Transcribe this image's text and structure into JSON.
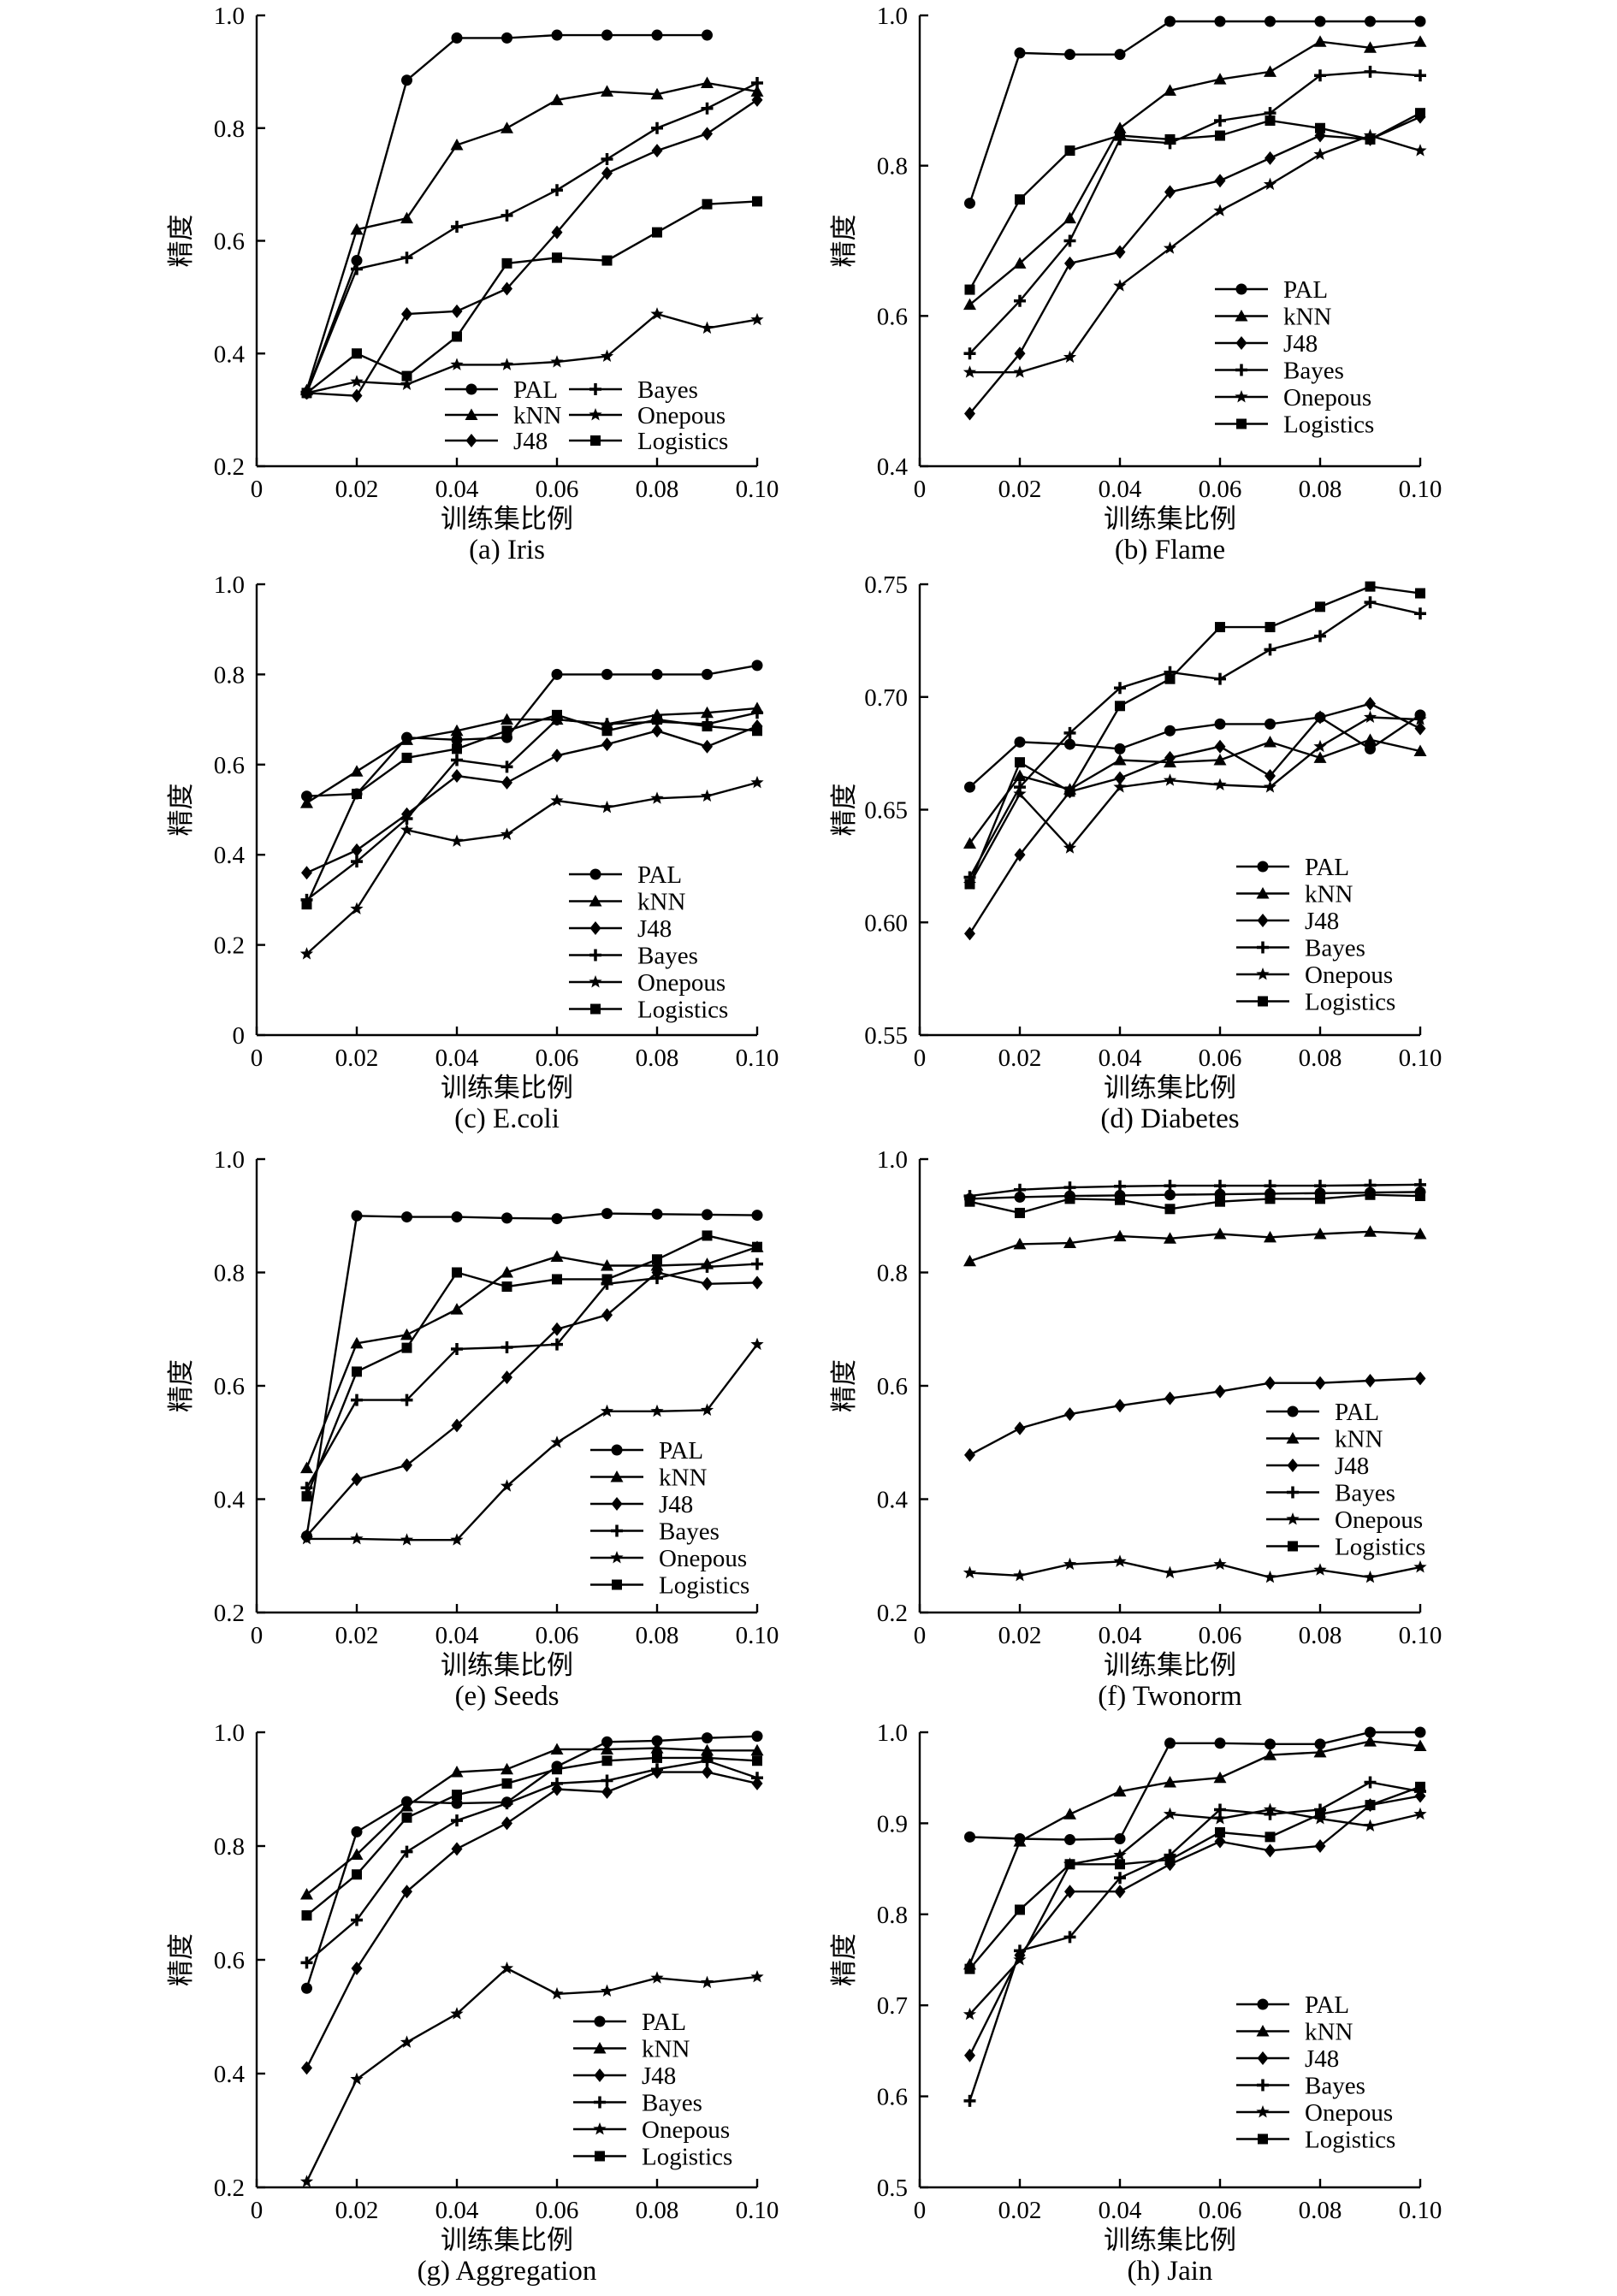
{
  "series_names": [
    "PAL",
    "kNN",
    "J48",
    "Bayes",
    "Onepous",
    "Logistics"
  ],
  "xlabel": "训练集比例",
  "ylabel": "精度",
  "x_ticks": [
    "0",
    "0.02",
    "0.04",
    "0.06",
    "0.08",
    "0.10"
  ],
  "chart_data": [
    {
      "type": "line",
      "title": "(a) Iris",
      "xlabel": "训练集比例",
      "ylabel": "精度",
      "xlim": [
        0,
        0.1
      ],
      "ylim": [
        0.2,
        1.0
      ],
      "y_ticks": [
        "0.2",
        "0.4",
        "0.6",
        "0.8",
        "1.0"
      ],
      "legend": "bottom-center",
      "x": [
        0.01,
        0.02,
        0.03,
        0.04,
        0.05,
        0.06,
        0.07,
        0.08,
        0.09,
        0.1
      ],
      "series": [
        {
          "name": "PAL",
          "values": [
            0.33,
            0.565,
            0.885,
            0.96,
            0.96,
            0.965,
            0.965,
            0.965,
            0.965,
            null
          ]
        },
        {
          "name": "kNN",
          "values": [
            0.335,
            0.62,
            0.64,
            0.77,
            0.8,
            0.85,
            0.865,
            0.86,
            0.88,
            0.865
          ]
        },
        {
          "name": "J48",
          "values": [
            0.33,
            0.325,
            0.47,
            0.475,
            0.515,
            0.615,
            0.72,
            0.76,
            0.79,
            0.85
          ]
        },
        {
          "name": "Bayes",
          "values": [
            0.33,
            0.55,
            0.57,
            0.625,
            0.645,
            0.69,
            0.745,
            0.8,
            0.835,
            0.88
          ]
        },
        {
          "name": "Onepous",
          "values": [
            0.33,
            0.35,
            0.345,
            0.38,
            0.38,
            0.385,
            0.395,
            0.47,
            0.445,
            0.46
          ]
        },
        {
          "name": "Logistics",
          "values": [
            0.33,
            0.4,
            0.36,
            0.43,
            0.56,
            0.57,
            0.565,
            0.615,
            0.665,
            0.67
          ]
        }
      ]
    },
    {
      "type": "line",
      "title": "(b) Flame",
      "xlabel": "训练集比例",
      "ylabel": "精度",
      "xlim": [
        0,
        0.1
      ],
      "ylim": [
        0.4,
        1.0
      ],
      "y_ticks": [
        "0.4",
        "0.6",
        "0.8",
        "1.0"
      ],
      "legend": "center-right",
      "x": [
        0.01,
        0.02,
        0.03,
        0.04,
        0.05,
        0.06,
        0.07,
        0.08,
        0.09,
        0.1
      ],
      "series": [
        {
          "name": "PAL",
          "values": [
            0.75,
            0.95,
            0.948,
            0.948,
            0.992,
            0.992,
            0.992,
            0.992,
            0.992,
            0.992
          ]
        },
        {
          "name": "kNN",
          "values": [
            0.615,
            0.67,
            0.73,
            0.85,
            0.9,
            0.915,
            0.925,
            0.965,
            0.957,
            0.965
          ]
        },
        {
          "name": "J48",
          "values": [
            0.47,
            0.55,
            0.67,
            0.685,
            0.765,
            0.78,
            0.81,
            0.84,
            0.835,
            0.865
          ]
        },
        {
          "name": "Bayes",
          "values": [
            0.55,
            0.62,
            0.7,
            0.835,
            0.83,
            0.86,
            0.87,
            0.92,
            0.925,
            0.92
          ]
        },
        {
          "name": "Onepous",
          "values": [
            0.525,
            0.525,
            0.545,
            0.64,
            0.69,
            0.74,
            0.775,
            0.815,
            0.84,
            0.82
          ]
        },
        {
          "name": "Logistics",
          "values": [
            0.635,
            0.755,
            0.82,
            0.84,
            0.835,
            0.84,
            0.86,
            0.85,
            0.835,
            0.87
          ]
        }
      ]
    },
    {
      "type": "line",
      "title": "(c) E.coli",
      "xlabel": "训练集比例",
      "ylabel": "精度",
      "xlim": [
        0,
        0.1
      ],
      "ylim": [
        0,
        1.0
      ],
      "y_ticks": [
        "0",
        "0.2",
        "0.4",
        "0.6",
        "0.8",
        "1.0"
      ],
      "legend": "bottom-right",
      "x": [
        0.01,
        0.02,
        0.03,
        0.04,
        0.05,
        0.06,
        0.07,
        0.08,
        0.09,
        0.1
      ],
      "series": [
        {
          "name": "PAL",
          "values": [
            0.53,
            0.535,
            0.66,
            0.655,
            0.66,
            0.8,
            0.8,
            0.8,
            0.8,
            0.82
          ]
        },
        {
          "name": "kNN",
          "values": [
            0.515,
            0.585,
            0.655,
            0.675,
            0.7,
            0.7,
            0.69,
            0.71,
            0.715,
            0.725
          ]
        },
        {
          "name": "J48",
          "values": [
            0.36,
            0.41,
            0.49,
            0.575,
            0.56,
            0.62,
            0.645,
            0.675,
            0.64,
            0.685
          ]
        },
        {
          "name": "Bayes",
          "values": [
            0.3,
            0.385,
            0.48,
            0.61,
            0.595,
            0.7,
            0.69,
            0.695,
            0.69,
            0.715
          ]
        },
        {
          "name": "Onepous",
          "values": [
            0.18,
            0.28,
            0.455,
            0.43,
            0.445,
            0.52,
            0.505,
            0.525,
            0.53,
            0.56
          ]
        },
        {
          "name": "Logistics",
          "values": [
            0.29,
            0.535,
            0.615,
            0.635,
            0.675,
            0.71,
            0.675,
            0.7,
            0.685,
            0.675
          ]
        }
      ]
    },
    {
      "type": "line",
      "title": "(d) Diabetes",
      "xlabel": "训练集比例",
      "ylabel": "精度",
      "xlim": [
        0,
        0.1
      ],
      "ylim": [
        0.55,
        0.75
      ],
      "y_ticks": [
        "0.55",
        "0.60",
        "0.65",
        "0.70",
        "0.75"
      ],
      "legend": "bottom-right",
      "x": [
        0.01,
        0.02,
        0.03,
        0.04,
        0.05,
        0.06,
        0.07,
        0.08,
        0.09,
        0.1
      ],
      "series": [
        {
          "name": "PAL",
          "values": [
            0.66,
            0.68,
            0.679,
            0.677,
            0.685,
            0.688,
            0.688,
            0.691,
            0.677,
            0.692
          ]
        },
        {
          "name": "kNN",
          "values": [
            0.635,
            0.665,
            0.659,
            0.672,
            0.671,
            0.672,
            0.68,
            0.673,
            0.681,
            0.676
          ]
        },
        {
          "name": "J48",
          "values": [
            0.595,
            0.63,
            0.658,
            0.664,
            0.673,
            0.678,
            0.665,
            0.691,
            0.697,
            0.686
          ]
        },
        {
          "name": "Bayes",
          "values": [
            0.62,
            0.66,
            0.684,
            0.704,
            0.711,
            0.708,
            0.721,
            0.727,
            0.742,
            0.737
          ]
        },
        {
          "name": "Onepous",
          "values": [
            0.617,
            0.657,
            0.633,
            0.66,
            0.663,
            0.661,
            0.66,
            0.678,
            0.691,
            0.69
          ]
        },
        {
          "name": "Logistics",
          "values": [
            0.617,
            0.671,
            0.658,
            0.696,
            0.708,
            0.731,
            0.731,
            0.74,
            0.749,
            0.746
          ]
        }
      ]
    },
    {
      "type": "line",
      "title": "(e) Seeds",
      "xlabel": "训练集比例",
      "ylabel": "精度",
      "xlim": [
        0,
        0.1
      ],
      "ylim": [
        0.2,
        1.0
      ],
      "y_ticks": [
        "0.2",
        "0.4",
        "0.6",
        "0.8",
        "1.0"
      ],
      "legend": "bottom-right",
      "x": [
        0.01,
        0.02,
        0.03,
        0.04,
        0.05,
        0.06,
        0.07,
        0.08,
        0.09,
        0.1
      ],
      "series": [
        {
          "name": "PAL",
          "values": [
            0.335,
            0.9,
            0.898,
            0.898,
            0.896,
            0.895,
            0.904,
            0.903,
            0.902,
            0.901
          ]
        },
        {
          "name": "kNN",
          "values": [
            0.455,
            0.675,
            0.69,
            0.735,
            0.8,
            0.828,
            0.812,
            0.812,
            0.815,
            0.845
          ]
        },
        {
          "name": "J48",
          "values": [
            0.335,
            0.435,
            0.46,
            0.53,
            0.615,
            0.7,
            0.725,
            0.8,
            0.78,
            0.782
          ]
        },
        {
          "name": "Bayes",
          "values": [
            0.42,
            0.575,
            0.575,
            0.665,
            0.668,
            0.673,
            0.78,
            0.79,
            0.81,
            0.815
          ]
        },
        {
          "name": "Onepous",
          "values": [
            0.33,
            0.33,
            0.328,
            0.328,
            0.423,
            0.5,
            0.555,
            0.555,
            0.557,
            0.673
          ]
        },
        {
          "name": "Logistics",
          "values": [
            0.405,
            0.625,
            0.667,
            0.8,
            0.775,
            0.788,
            0.788,
            0.823,
            0.865,
            0.845
          ]
        }
      ]
    },
    {
      "type": "line",
      "title": "(f) Twonorm",
      "xlabel": "训练集比例",
      "ylabel": "精度",
      "xlim": [
        0,
        0.1
      ],
      "ylim": [
        0.2,
        1.0
      ],
      "y_ticks": [
        "0.2",
        "0.4",
        "0.6",
        "0.8",
        "1.0"
      ],
      "legend": "center-right",
      "x": [
        0.01,
        0.02,
        0.03,
        0.04,
        0.05,
        0.06,
        0.07,
        0.08,
        0.09,
        0.1
      ],
      "series": [
        {
          "name": "PAL",
          "values": [
            0.93,
            0.933,
            0.935,
            0.936,
            0.937,
            0.938,
            0.939,
            0.94,
            0.941,
            0.942
          ]
        },
        {
          "name": "kNN",
          "values": [
            0.82,
            0.85,
            0.852,
            0.864,
            0.86,
            0.868,
            0.862,
            0.868,
            0.872,
            0.868
          ]
        },
        {
          "name": "J48",
          "values": [
            0.478,
            0.525,
            0.55,
            0.565,
            0.578,
            0.59,
            0.605,
            0.605,
            0.609,
            0.613
          ]
        },
        {
          "name": "Bayes",
          "values": [
            0.935,
            0.946,
            0.95,
            0.952,
            0.953,
            0.953,
            0.953,
            0.953,
            0.954,
            0.955
          ]
        },
        {
          "name": "Onepous",
          "values": [
            0.27,
            0.265,
            0.285,
            0.29,
            0.27,
            0.285,
            0.262,
            0.275,
            0.262,
            0.28
          ]
        },
        {
          "name": "Logistics",
          "values": [
            0.925,
            0.905,
            0.93,
            0.928,
            0.912,
            0.925,
            0.93,
            0.93,
            0.937,
            0.935
          ]
        }
      ]
    },
    {
      "type": "line",
      "title": "(g) Aggregation",
      "xlabel": "训练集比例",
      "ylabel": "精度",
      "xlim": [
        0,
        0.1
      ],
      "ylim": [
        0.2,
        1.0
      ],
      "y_ticks": [
        "0.2",
        "0.4",
        "0.6",
        "0.8",
        "1.0"
      ],
      "legend": "bottom-right",
      "x": [
        0.01,
        0.02,
        0.03,
        0.04,
        0.05,
        0.06,
        0.07,
        0.08,
        0.09,
        0.1
      ],
      "series": [
        {
          "name": "PAL",
          "values": [
            0.55,
            0.825,
            0.878,
            0.875,
            0.877,
            0.94,
            0.983,
            0.985,
            0.99,
            0.993
          ]
        },
        {
          "name": "kNN",
          "values": [
            0.715,
            0.785,
            0.87,
            0.93,
            0.935,
            0.97,
            0.97,
            0.972,
            0.968,
            0.968
          ]
        },
        {
          "name": "J48",
          "values": [
            0.41,
            0.585,
            0.72,
            0.795,
            0.84,
            0.9,
            0.895,
            0.93,
            0.93,
            0.91
          ]
        },
        {
          "name": "Bayes",
          "values": [
            0.595,
            0.67,
            0.79,
            0.845,
            0.875,
            0.91,
            0.915,
            0.935,
            0.95,
            0.92
          ]
        },
        {
          "name": "Onepous",
          "values": [
            0.21,
            0.39,
            0.455,
            0.505,
            0.585,
            0.54,
            0.545,
            0.568,
            0.56,
            0.57
          ]
        },
        {
          "name": "Logistics",
          "values": [
            0.678,
            0.75,
            0.85,
            0.89,
            0.91,
            0.935,
            0.95,
            0.955,
            0.955,
            0.95
          ]
        }
      ]
    },
    {
      "type": "line",
      "title": "(h) Jain",
      "xlabel": "训练集比例",
      "ylabel": "精度",
      "xlim": [
        0,
        0.1
      ],
      "ylim": [
        0.5,
        1.0
      ],
      "y_ticks": [
        "0.5",
        "0.6",
        "0.7",
        "0.8",
        "0.9",
        "1.0"
      ],
      "legend": "bottom-right",
      "x": [
        0.01,
        0.02,
        0.03,
        0.04,
        0.05,
        0.06,
        0.07,
        0.08,
        0.09,
        0.1
      ],
      "series": [
        {
          "name": "PAL",
          "values": [
            0.885,
            0.883,
            0.882,
            0.883,
            0.988,
            0.988,
            0.987,
            0.987,
            1.0,
            1.0
          ]
        },
        {
          "name": "kNN",
          "values": [
            0.745,
            0.88,
            0.91,
            0.935,
            0.945,
            0.95,
            0.975,
            0.978,
            0.99,
            0.985
          ]
        },
        {
          "name": "J48",
          "values": [
            0.645,
            0.755,
            0.825,
            0.825,
            0.855,
            0.88,
            0.87,
            0.875,
            0.92,
            0.93
          ]
        },
        {
          "name": "Bayes",
          "values": [
            0.595,
            0.76,
            0.775,
            0.84,
            0.865,
            0.915,
            0.91,
            0.915,
            0.945,
            0.935
          ]
        },
        {
          "name": "Onepous",
          "values": [
            0.69,
            0.75,
            0.855,
            0.865,
            0.91,
            0.905,
            0.915,
            0.905,
            0.897,
            0.91
          ]
        },
        {
          "name": "Logistics",
          "values": [
            0.74,
            0.805,
            0.855,
            0.855,
            0.86,
            0.89,
            0.885,
            0.91,
            0.92,
            0.94
          ]
        }
      ]
    }
  ]
}
